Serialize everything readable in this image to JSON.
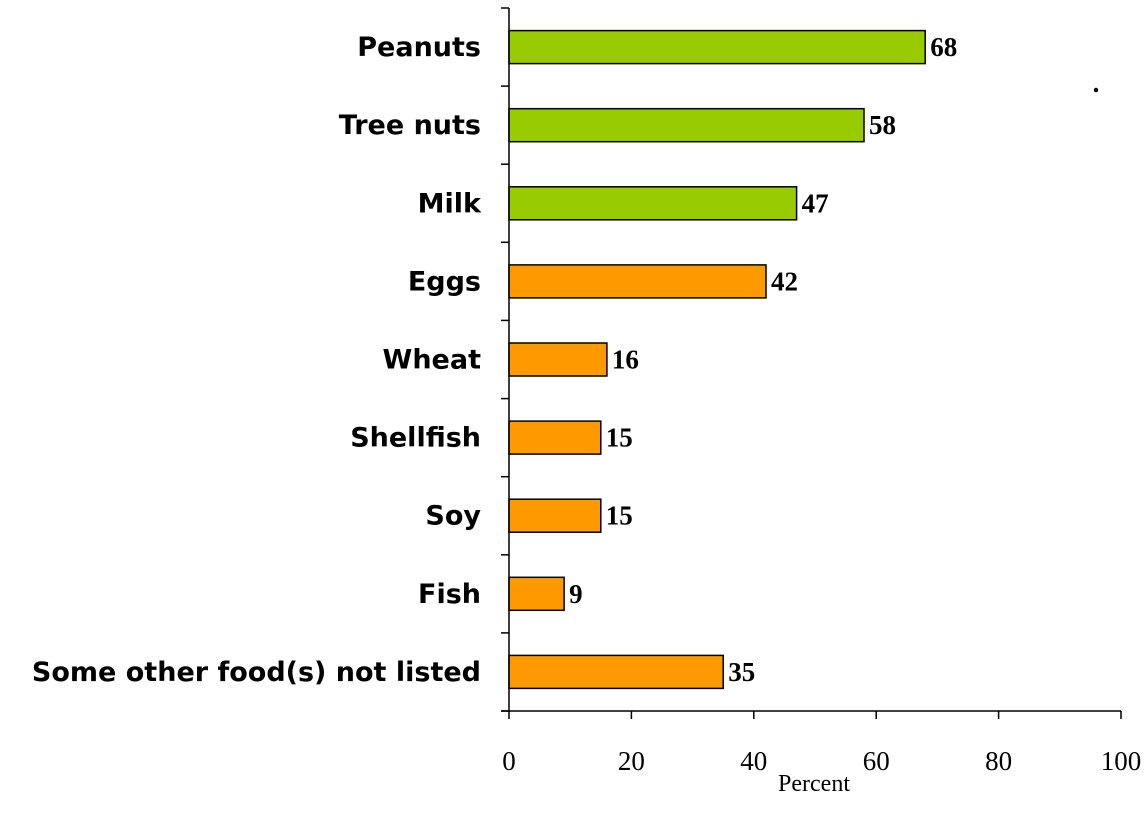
{
  "chart_data": {
    "type": "bar",
    "orientation": "horizontal",
    "categories": [
      "Peanuts",
      "Tree nuts",
      "Milk",
      "Eggs",
      "Wheat",
      "Shellfish",
      "Soy",
      "Fish",
      "Some other food(s) not listed"
    ],
    "values": [
      68,
      58,
      47,
      42,
      16,
      15,
      15,
      9,
      35
    ],
    "data_labels": [
      "68",
      "58",
      "47",
      "42",
      "16",
      "15",
      "15",
      "9",
      "35"
    ],
    "bar_colors": [
      "#99cc00",
      "#99cc00",
      "#99cc00",
      "#ff9900",
      "#ff9900",
      "#ff9900",
      "#ff9900",
      "#ff9900",
      "#ff9900"
    ],
    "title": "",
    "xlabel": "Percent",
    "ylabel": "",
    "xlim": [
      0,
      100
    ],
    "xticks": [
      0,
      20,
      40,
      60,
      80,
      100
    ],
    "xtick_labels": [
      "0",
      "20",
      "40",
      "60",
      "80",
      "100"
    ],
    "grid": false,
    "legend": "none",
    "annotation": "."
  }
}
